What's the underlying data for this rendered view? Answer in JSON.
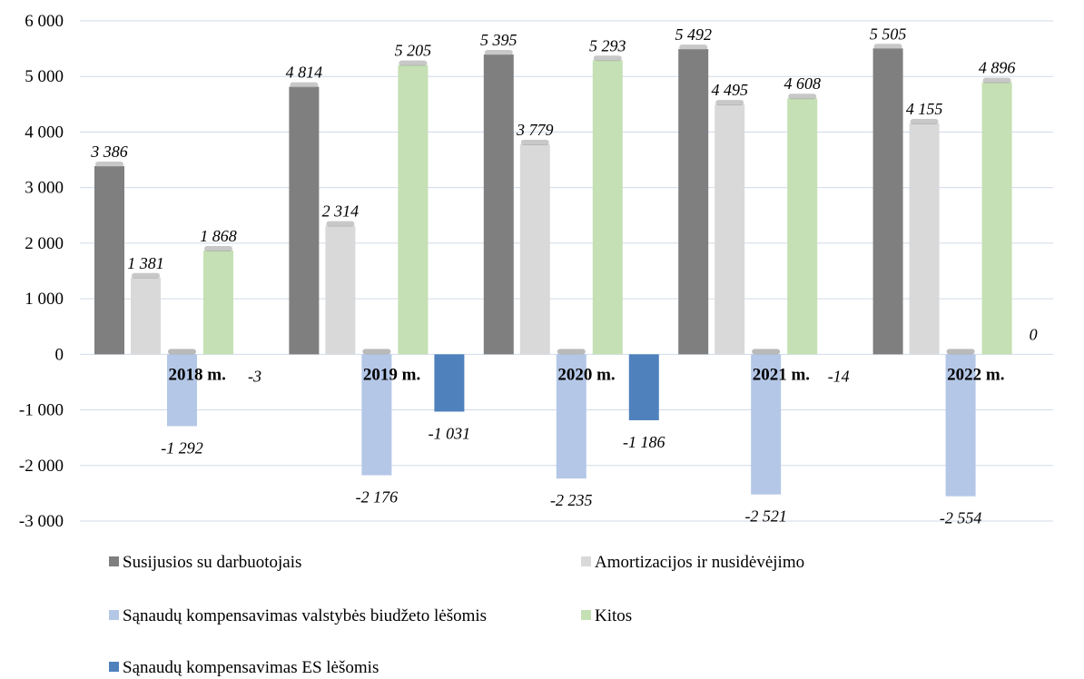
{
  "chart_data": {
    "type": "bar",
    "title": "",
    "xlabel": "",
    "ylabel": "",
    "ylim": [
      -3000,
      6000
    ],
    "yticks": [
      6000,
      5000,
      4000,
      3000,
      2000,
      1000,
      0,
      -1000,
      -2000,
      -3000
    ],
    "ytick_labels": [
      "6 000",
      "5 000",
      "4 000",
      "3 000",
      "2 000",
      "1 000",
      "0",
      "-1 000",
      "-2 000",
      "-3 000"
    ],
    "grid": true,
    "legend_position": "bottom",
    "categories": [
      "2018 m.",
      "2019 m.",
      "2020 m.",
      "2021 m.",
      "2022 m."
    ],
    "series": [
      {
        "name": "Susijusios su darbuotojais",
        "color": "#7f7f7f",
        "values": [
          3386,
          4814,
          5395,
          5492,
          5505
        ],
        "labels": [
          "3 386",
          "4 814",
          "5 395",
          "5 492",
          "5 505"
        ]
      },
      {
        "name": "Amortizacijos ir nusidėvėjimo",
        "color": "#d9d9d9",
        "values": [
          1381,
          2314,
          3779,
          4495,
          4155
        ],
        "labels": [
          "1 381",
          "2 314",
          "3 779",
          "4 495",
          "4 155"
        ]
      },
      {
        "name": "Sąnaudų kompensavimas valstybės biudžeto lėšomis",
        "color": "#b4c7e7",
        "values": [
          -1292,
          -2176,
          -2235,
          -2521,
          -2554
        ],
        "labels": [
          "-1 292",
          "-2 176",
          "-2 235",
          "-2 521",
          "-2 554"
        ]
      },
      {
        "name": "Kitos",
        "color": "#c5e0b4",
        "values": [
          1868,
          5205,
          5293,
          4608,
          4896
        ],
        "labels": [
          "1 868",
          "5 205",
          "5 293",
          "4 608",
          "4 896"
        ]
      },
      {
        "name": "Sąnaudų kompensavimas ES lėšomis",
        "color": "#4f81bd",
        "values": [
          -3,
          -1031,
          -1186,
          -14,
          0
        ],
        "labels": [
          "-3",
          "-1 031",
          "-1 186",
          "-14",
          "0"
        ]
      }
    ]
  }
}
